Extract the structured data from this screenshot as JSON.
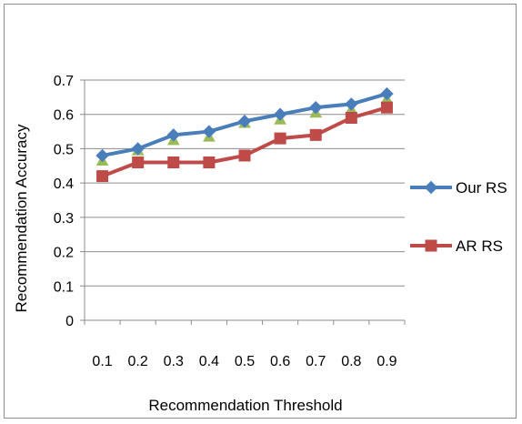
{
  "chart_data": {
    "type": "line",
    "title": "",
    "xlabel": "Recommendation Threshold",
    "ylabel": "Recommendation Accuracy",
    "categories": [
      "0.1",
      "0.2",
      "0.3",
      "0.4",
      "0.5",
      "0.6",
      "0.7",
      "0.8",
      "0.9"
    ],
    "ylim": [
      0,
      0.7
    ],
    "yticks": [
      "0",
      "0.1",
      "0.2",
      "0.3",
      "0.4",
      "0.5",
      "0.6",
      "0.7"
    ],
    "grid": true,
    "legend_position": "right",
    "series": [
      {
        "name": "Our RS",
        "marker": "diamond",
        "color": "#4a7ebb",
        "values": [
          0.48,
          0.5,
          0.54,
          0.55,
          0.58,
          0.6,
          0.62,
          0.63,
          0.66
        ]
      },
      {
        "name": "AR RS",
        "marker": "square",
        "color": "#be4b48",
        "values": [
          0.42,
          0.46,
          0.46,
          0.46,
          0.48,
          0.53,
          0.54,
          0.59,
          0.62
        ]
      }
    ],
    "hidden_series": {
      "marker": "triangle",
      "color": "#9bbb59",
      "values": [
        0.47,
        0.5,
        0.53,
        0.54,
        0.58,
        0.59,
        0.61,
        0.62,
        0.65
      ]
    }
  }
}
